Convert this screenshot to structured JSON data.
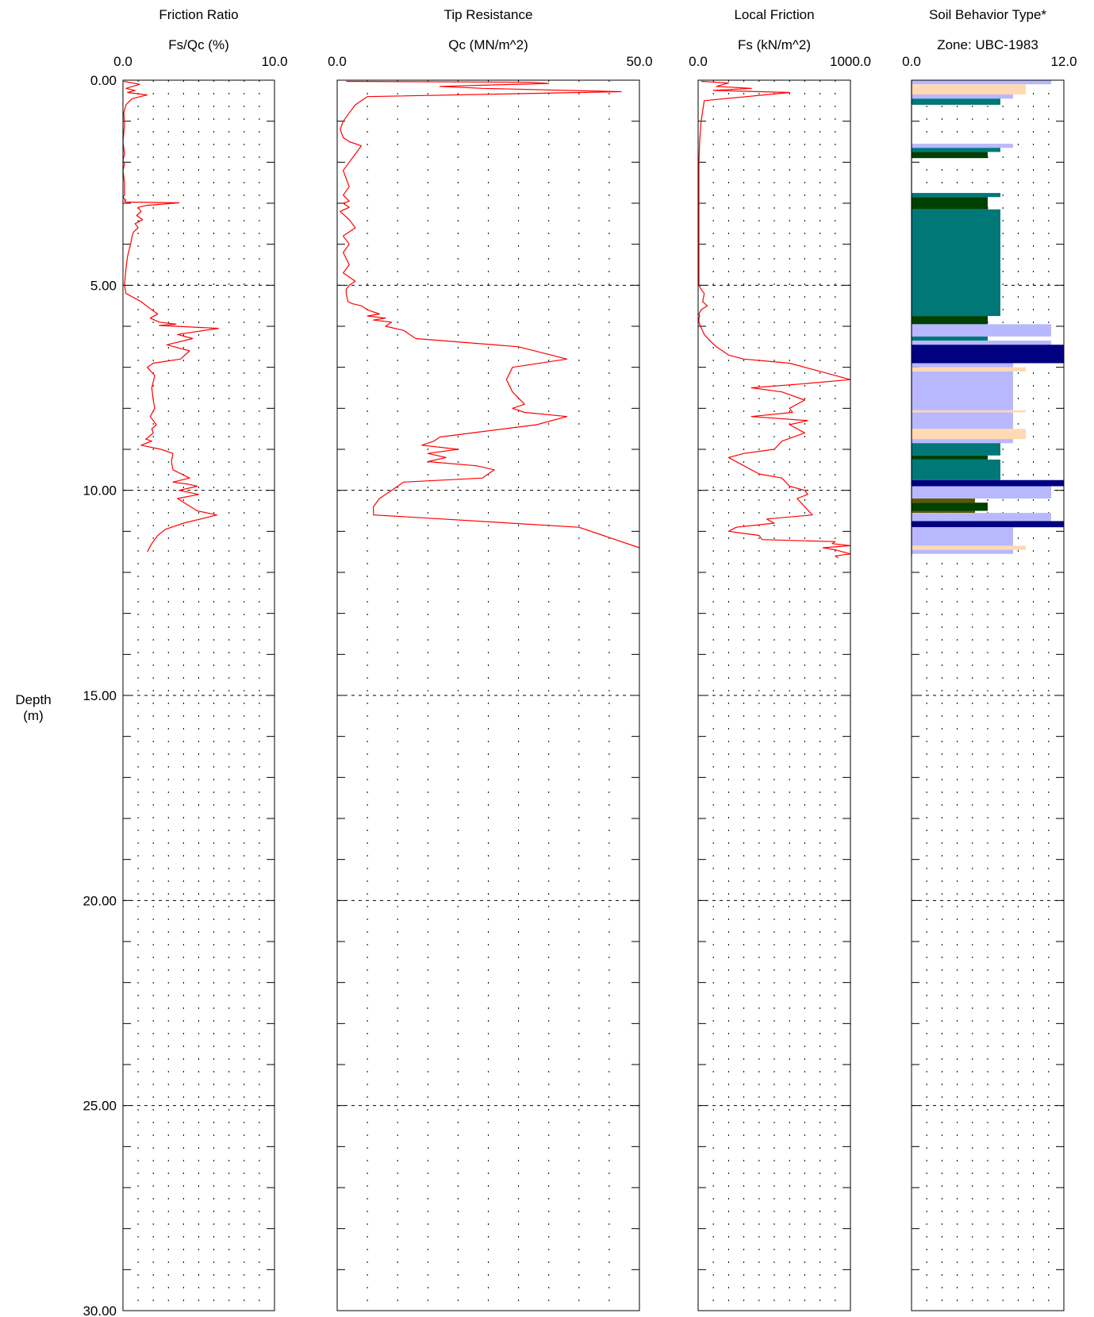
{
  "depth_axis": {
    "label_line1": "Depth",
    "label_line2": "(m)",
    "ticks": [
      "0.00",
      "5.00",
      "10.00",
      "15.00",
      "20.00",
      "25.00",
      "30.00"
    ]
  },
  "colors": {
    "trace": "#ff0000",
    "frame": "#000000",
    "zone_peach": "#ffd9b3",
    "zone_lavender": "#b8b8ff",
    "zone_teal": "#007878",
    "zone_dark_green": "#004000",
    "zone_navy": "#000080",
    "zone_olive": "#5a5a00"
  },
  "chart_data": [
    {
      "type": "line",
      "title": "Friction Ratio",
      "xlabel": "Fs/Qc (%)",
      "ylabel": "Depth (m)",
      "xlim": [
        0,
        10
      ],
      "ylim": [
        0,
        30
      ],
      "y_inverted": true,
      "xtick_labels": [
        "0.0",
        "10.0"
      ],
      "grid": true,
      "series": [
        {
          "x": [
            0.05,
            1.1,
            0.2,
            0.8,
            0.3,
            1.6,
            0.6,
            0.2,
            0.05,
            0.1,
            0.0,
            0.1,
            0.0,
            0.1,
            0.0,
            0.1,
            0.1,
            0.0,
            0.1,
            0.2,
            0.1,
            0.2,
            3.7,
            1.6,
            1.0,
            1.2,
            0.9,
            1.3,
            0.8,
            1.0,
            0.7,
            0.6,
            0.5,
            0.3,
            0.2,
            0.1,
            0.2,
            1.2,
            1.9,
            2.3,
            1.8,
            2.4,
            3.5,
            2.4,
            6.3,
            3.6,
            4.6,
            2.9,
            4.4,
            3.8,
            2.0,
            1.6,
            2.1,
            1.9,
            2.0,
            2.1,
            1.8,
            2.2,
            1.9,
            2.0,
            1.7,
            1.5,
            1.9,
            1.2,
            2.5,
            3.3,
            3.2,
            3.3,
            4.4,
            3.3,
            4.3,
            4.9,
            3.7,
            5.0,
            3.6,
            4.9,
            6.2,
            4.0,
            2.8,
            2.3,
            1.9,
            1.6
          ],
          "y": [
            0.03,
            0.1,
            0.2,
            0.25,
            0.3,
            0.36,
            0.45,
            0.6,
            0.8,
            1.1,
            1.5,
            1.8,
            1.95,
            2.05,
            2.2,
            2.5,
            2.8,
            2.85,
            2.9,
            2.92,
            2.95,
            2.97,
            2.99,
            3.05,
            3.1,
            3.2,
            3.3,
            3.4,
            3.5,
            3.6,
            3.7,
            3.8,
            4.0,
            4.3,
            4.6,
            5.0,
            5.2,
            5.4,
            5.6,
            5.7,
            5.8,
            5.9,
            5.95,
            5.98,
            6.05,
            6.2,
            6.3,
            6.45,
            6.6,
            6.8,
            6.9,
            7.0,
            7.2,
            7.5,
            7.8,
            8.0,
            8.2,
            8.4,
            8.5,
            8.6,
            8.7,
            8.75,
            8.8,
            8.9,
            9.0,
            9.1,
            9.3,
            9.5,
            9.7,
            9.8,
            9.85,
            9.9,
            10.0,
            10.1,
            10.2,
            10.5,
            10.6,
            10.8,
            10.95,
            11.1,
            11.3,
            11.5
          ]
        }
      ]
    },
    {
      "type": "line",
      "title": "Tip Resistance",
      "xlabel": "Qc (MN/m^2)",
      "ylabel": "Depth (m)",
      "xlim": [
        0,
        50
      ],
      "ylim": [
        0,
        30
      ],
      "y_inverted": true,
      "xtick_labels": [
        "0.0",
        "50.0"
      ],
      "grid": true,
      "series": [
        {
          "x": [
            1.5,
            32,
            35,
            17,
            24,
            47,
            5,
            3,
            2,
            1,
            0.5,
            1,
            2,
            4,
            3,
            2,
            1,
            1.5,
            2,
            1,
            2,
            1,
            2,
            0.5,
            2,
            3,
            1,
            2,
            1,
            2,
            1,
            3,
            2,
            1.5,
            1.5,
            1.8,
            2.5,
            4,
            5,
            7,
            5,
            8,
            6,
            9,
            8,
            11,
            13,
            30,
            38,
            29,
            28,
            29,
            31,
            29,
            31,
            38,
            33,
            17,
            16,
            14,
            20,
            15,
            18,
            15,
            23,
            26,
            24,
            11,
            9,
            7,
            6,
            6,
            12,
            40,
            52
          ],
          "y": [
            0.03,
            0.05,
            0.08,
            0.15,
            0.2,
            0.28,
            0.4,
            0.6,
            0.8,
            1.0,
            1.2,
            1.4,
            1.5,
            1.6,
            1.8,
            2.0,
            2.2,
            2.4,
            2.6,
            2.8,
            2.95,
            3.0,
            3.1,
            3.2,
            3.4,
            3.6,
            3.8,
            4.0,
            4.2,
            4.5,
            4.7,
            4.9,
            5.0,
            5.1,
            5.2,
            5.4,
            5.45,
            5.5,
            5.6,
            5.7,
            5.75,
            5.8,
            5.85,
            5.9,
            6.0,
            6.1,
            6.3,
            6.5,
            6.8,
            7.0,
            7.3,
            7.6,
            7.9,
            8.0,
            8.1,
            8.2,
            8.4,
            8.7,
            8.8,
            8.9,
            9.0,
            9.1,
            9.2,
            9.3,
            9.4,
            9.5,
            9.7,
            9.8,
            10.0,
            10.2,
            10.4,
            10.6,
            10.65,
            10.9,
            11.4
          ]
        }
      ]
    },
    {
      "type": "line",
      "title": "Local Friction",
      "xlabel": "Fs (kN/m^2)",
      "ylabel": "Depth (m)",
      "xlim": [
        0,
        1000
      ],
      "ylim": [
        0,
        30
      ],
      "y_inverted": true,
      "xtick_labels": [
        "0.0",
        "1000.0"
      ],
      "grid": true,
      "series": [
        {
          "x": [
            20,
            200,
            120,
            350,
            100,
            600,
            40,
            20,
            10,
            5,
            5,
            5,
            5,
            5,
            5,
            5,
            5,
            5,
            20,
            40,
            30,
            60,
            20,
            5,
            10,
            5,
            5,
            15,
            40,
            90,
            120,
            160,
            200,
            250,
            300,
            450,
            600,
            800,
            1000,
            700,
            350,
            550,
            700,
            600,
            620,
            350,
            720,
            600,
            700,
            550,
            500,
            300,
            200,
            300,
            400,
            550,
            600,
            700,
            720,
            650,
            700,
            750,
            450,
            500,
            250,
            200,
            300,
            400,
            420,
            900,
            880,
            1000,
            820,
            900,
            950,
            1000,
            900,
            920
          ],
          "y": [
            0.03,
            0.07,
            0.15,
            0.2,
            0.25,
            0.3,
            0.5,
            1.0,
            1.5,
            2.0,
            2.5,
            2.9,
            3.0,
            3.2,
            3.5,
            3.8,
            4.2,
            5.0,
            5.1,
            5.2,
            5.4,
            5.5,
            5.6,
            5.7,
            5.75,
            5.8,
            5.9,
            6.0,
            6.2,
            6.4,
            6.5,
            6.6,
            6.7,
            6.75,
            6.8,
            6.85,
            6.9,
            7.1,
            7.3,
            7.4,
            7.5,
            7.6,
            7.8,
            8.0,
            8.1,
            8.2,
            8.3,
            8.4,
            8.6,
            8.8,
            9.0,
            9.1,
            9.2,
            9.4,
            9.6,
            9.7,
            9.9,
            10.0,
            10.1,
            10.2,
            10.4,
            10.6,
            10.7,
            10.8,
            10.9,
            11.0,
            11.05,
            11.1,
            11.2,
            11.25,
            11.3,
            11.35,
            11.4,
            11.45,
            11.5,
            11.55,
            11.6,
            11.65
          ]
        }
      ]
    },
    {
      "type": "bar",
      "title": "Soil Behavior Type*",
      "xlabel": "Zone: UBC-1983",
      "ylabel": "Depth (m)",
      "xlim": [
        0,
        12
      ],
      "ylim": [
        0,
        30
      ],
      "y_inverted": true,
      "xtick_labels": [
        "0.0",
        "12.0"
      ],
      "grid": true,
      "bars": [
        {
          "depth_top": 0.0,
          "depth_bottom": 0.1,
          "zone": 11,
          "color": "lavender"
        },
        {
          "depth_top": 0.1,
          "depth_bottom": 0.35,
          "zone": 9,
          "color": "peach"
        },
        {
          "depth_top": 0.35,
          "depth_bottom": 0.45,
          "zone": 8,
          "color": "lavender"
        },
        {
          "depth_top": 0.45,
          "depth_bottom": 0.6,
          "zone": 7,
          "color": "teal"
        },
        {
          "depth_top": 1.55,
          "depth_bottom": 1.65,
          "zone": 8,
          "color": "lavender"
        },
        {
          "depth_top": 1.65,
          "depth_bottom": 1.75,
          "zone": 7,
          "color": "teal"
        },
        {
          "depth_top": 1.75,
          "depth_bottom": 1.9,
          "zone": 6,
          "color": "dark_green"
        },
        {
          "depth_top": 2.75,
          "depth_bottom": 2.85,
          "zone": 7,
          "color": "teal"
        },
        {
          "depth_top": 2.85,
          "depth_bottom": 3.15,
          "zone": 6,
          "color": "dark_green"
        },
        {
          "depth_top": 3.15,
          "depth_bottom": 5.75,
          "zone": 7,
          "color": "teal"
        },
        {
          "depth_top": 5.75,
          "depth_bottom": 5.95,
          "zone": 6,
          "color": "dark_green"
        },
        {
          "depth_top": 5.95,
          "depth_bottom": 6.25,
          "zone": 11,
          "color": "lavender"
        },
        {
          "depth_top": 6.25,
          "depth_bottom": 6.35,
          "zone": 6,
          "color": "teal"
        },
        {
          "depth_top": 6.35,
          "depth_bottom": 6.45,
          "zone": 11,
          "color": "lavender"
        },
        {
          "depth_top": 6.45,
          "depth_bottom": 6.9,
          "zone": 12,
          "color": "navy"
        },
        {
          "depth_top": 6.9,
          "depth_bottom": 7.0,
          "zone": 8,
          "color": "lavender"
        },
        {
          "depth_top": 7.0,
          "depth_bottom": 7.1,
          "zone": 9,
          "color": "peach"
        },
        {
          "depth_top": 7.1,
          "depth_bottom": 8.05,
          "zone": 8,
          "color": "lavender"
        },
        {
          "depth_top": 8.05,
          "depth_bottom": 8.1,
          "zone": 9,
          "color": "peach"
        },
        {
          "depth_top": 8.1,
          "depth_bottom": 8.5,
          "zone": 8,
          "color": "lavender"
        },
        {
          "depth_top": 8.5,
          "depth_bottom": 8.75,
          "zone": 9,
          "color": "peach"
        },
        {
          "depth_top": 8.75,
          "depth_bottom": 8.85,
          "zone": 8,
          "color": "lavender"
        },
        {
          "depth_top": 8.85,
          "depth_bottom": 9.15,
          "zone": 7,
          "color": "teal"
        },
        {
          "depth_top": 9.15,
          "depth_bottom": 9.25,
          "zone": 6,
          "color": "dark_green"
        },
        {
          "depth_top": 9.25,
          "depth_bottom": 9.75,
          "zone": 7,
          "color": "teal"
        },
        {
          "depth_top": 9.75,
          "depth_bottom": 9.9,
          "zone": 12,
          "color": "navy"
        },
        {
          "depth_top": 9.9,
          "depth_bottom": 10.2,
          "zone": 11,
          "color": "lavender"
        },
        {
          "depth_top": 10.2,
          "depth_bottom": 10.3,
          "zone": 5,
          "color": "olive"
        },
        {
          "depth_top": 10.3,
          "depth_bottom": 10.5,
          "zone": 6,
          "color": "dark_green"
        },
        {
          "depth_top": 10.5,
          "depth_bottom": 10.55,
          "zone": 5,
          "color": "olive"
        },
        {
          "depth_top": 10.55,
          "depth_bottom": 10.75,
          "zone": 11,
          "color": "lavender"
        },
        {
          "depth_top": 10.75,
          "depth_bottom": 10.9,
          "zone": 12,
          "color": "navy"
        },
        {
          "depth_top": 10.9,
          "depth_bottom": 11.35,
          "zone": 8,
          "color": "lavender"
        },
        {
          "depth_top": 11.35,
          "depth_bottom": 11.45,
          "zone": 9,
          "color": "peach"
        },
        {
          "depth_top": 11.45,
          "depth_bottom": 11.55,
          "zone": 8,
          "color": "lavender"
        }
      ]
    }
  ]
}
